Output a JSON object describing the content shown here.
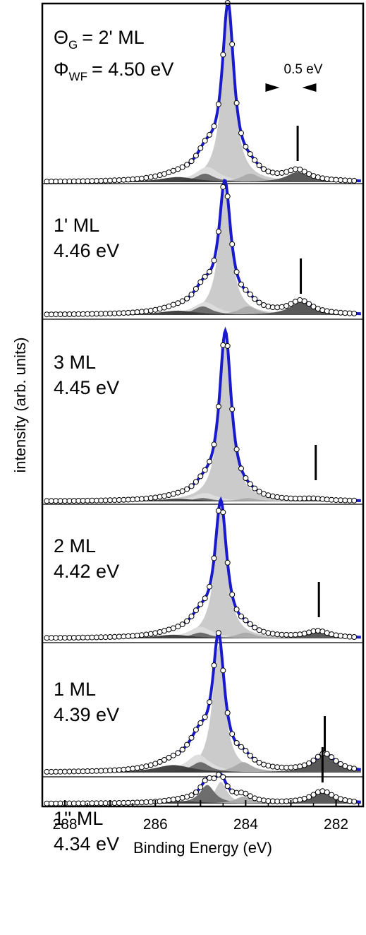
{
  "chart_data": {
    "type": "line",
    "xlabel": "Binding Energy (eV)",
    "ylabel": "intensity (arb. units)",
    "xlim": [
      288.5,
      281.4
    ],
    "x_reversed": true,
    "xticks": [
      288,
      287,
      286,
      285,
      284,
      283,
      282
    ],
    "xtick_labels": [
      "288",
      "",
      "286",
      "",
      "284",
      "",
      "282"
    ],
    "scale_bar": {
      "label": "0.5 eV",
      "width_eV": 0.5
    },
    "colors": {
      "fit": "#1a1acd",
      "main_peak": "#c8c8c8",
      "shoulder_light": "#dcdcdc",
      "component_dark": "#3a3a3a",
      "component_mid": "#666666",
      "satellite": "#505050",
      "markers": "#ffffff"
    },
    "panels": [
      {
        "coverage_prefix": "Θ",
        "coverage_sub": "G",
        "coverage_value": "= 2' ML",
        "wf_prefix": "Φ",
        "wf_sub": "WF",
        "wf_value": "= 4.50 eV",
        "peak_position": 284.39,
        "peak_height": 1.0,
        "marker_position": 282.85,
        "components": [
          {
            "name": "C1",
            "center": 284.39,
            "height": 1.0,
            "width": 0.16,
            "color": "#c8c8c8"
          },
          {
            "name": "C2",
            "center": 284.85,
            "height": 0.09,
            "width": 0.32,
            "color": "#dcdcdc"
          },
          {
            "name": "C3",
            "center": 283.9,
            "height": 0.05,
            "width": 0.25,
            "color": "#aaaaaa"
          },
          {
            "name": "C4",
            "center": 284.9,
            "height": 0.05,
            "width": 0.25,
            "color": "#666666"
          },
          {
            "name": "C5",
            "center": 285.5,
            "height": 0.03,
            "width": 0.5,
            "color": "#3a3a3a"
          },
          {
            "name": "S",
            "center": 282.85,
            "height": 0.06,
            "width": 0.3,
            "color": "#505050"
          }
        ]
      },
      {
        "label_line1": "1' ML",
        "label_line2": "4.46 eV",
        "peak_position": 284.46,
        "peak_height": 0.88,
        "marker_position": 282.78,
        "components": [
          {
            "name": "C1",
            "center": 284.46,
            "height": 0.88,
            "width": 0.16,
            "color": "#c8c8c8"
          },
          {
            "name": "C2",
            "center": 284.9,
            "height": 0.09,
            "width": 0.32,
            "color": "#dcdcdc"
          },
          {
            "name": "C3",
            "center": 283.95,
            "height": 0.06,
            "width": 0.25,
            "color": "#aaaaaa"
          },
          {
            "name": "C4",
            "center": 284.95,
            "height": 0.06,
            "width": 0.25,
            "color": "#666666"
          },
          {
            "name": "C5",
            "center": 285.5,
            "height": 0.03,
            "width": 0.5,
            "color": "#3a3a3a"
          },
          {
            "name": "S",
            "center": 282.78,
            "height": 0.09,
            "width": 0.3,
            "color": "#505050"
          }
        ]
      },
      {
        "label_line1": "3 ML",
        "label_line2": "4.45 eV",
        "peak_position": 284.45,
        "peak_height": 1.0,
        "marker_position": 282.45,
        "components": [
          {
            "name": "C1",
            "center": 284.45,
            "height": 1.0,
            "width": 0.16,
            "color": "#c8c8c8"
          },
          {
            "name": "C2",
            "center": 284.9,
            "height": 0.05,
            "width": 0.32,
            "color": "#dcdcdc"
          },
          {
            "name": "C3",
            "center": 283.95,
            "height": 0.02,
            "width": 0.25,
            "color": "#aaaaaa"
          },
          {
            "name": "C4",
            "center": 284.95,
            "height": 0.02,
            "width": 0.25,
            "color": "#666666"
          },
          {
            "name": "C5",
            "center": 285.5,
            "height": 0.015,
            "width": 0.5,
            "color": "#3a3a3a"
          },
          {
            "name": "S",
            "center": 282.5,
            "height": 0.01,
            "width": 0.3,
            "color": "#505050"
          }
        ]
      },
      {
        "label_line1": "2 ML",
        "label_line2": "4.42 eV",
        "peak_position": 284.55,
        "peak_height": 0.9,
        "marker_position": 282.38,
        "components": [
          {
            "name": "C1",
            "center": 284.55,
            "height": 0.9,
            "width": 0.16,
            "color": "#c8c8c8"
          },
          {
            "name": "C2",
            "center": 285.0,
            "height": 0.08,
            "width": 0.32,
            "color": "#dcdcdc"
          },
          {
            "name": "C3",
            "center": 284.0,
            "height": 0.04,
            "width": 0.25,
            "color": "#aaaaaa"
          },
          {
            "name": "C4",
            "center": 285.0,
            "height": 0.04,
            "width": 0.25,
            "color": "#666666"
          },
          {
            "name": "C5",
            "center": 285.6,
            "height": 0.025,
            "width": 0.5,
            "color": "#3a3a3a"
          },
          {
            "name": "S",
            "center": 282.4,
            "height": 0.045,
            "width": 0.3,
            "color": "#505050"
          }
        ]
      },
      {
        "label_line1": "1 ML",
        "label_line2": "4.39 eV",
        "peak_position": 284.6,
        "peak_height": 0.85,
        "marker_position": 282.25,
        "components": [
          {
            "name": "C1",
            "center": 284.6,
            "height": 0.85,
            "width": 0.16,
            "color": "#c8c8c8"
          },
          {
            "name": "C2",
            "center": 285.05,
            "height": 0.12,
            "width": 0.32,
            "color": "#dcdcdc"
          },
          {
            "name": "C3",
            "center": 284.05,
            "height": 0.07,
            "width": 0.25,
            "color": "#aaaaaa"
          },
          {
            "name": "C4",
            "center": 285.0,
            "height": 0.07,
            "width": 0.25,
            "color": "#666666"
          },
          {
            "name": "C5",
            "center": 285.6,
            "height": 0.05,
            "width": 0.5,
            "color": "#3a3a3a"
          },
          {
            "name": "S",
            "center": 282.25,
            "height": 0.12,
            "width": 0.3,
            "color": "#505050"
          }
        ]
      },
      {
        "label_line1": "1'' ML",
        "label_line2": "4.34 eV",
        "peak_position": 284.6,
        "peak_height": 0.88,
        "marker_position": 282.3,
        "components": [
          {
            "name": "C1",
            "center": 284.55,
            "height": 0.68,
            "width": 0.16,
            "color": "#c8c8c8"
          },
          {
            "name": "C2",
            "center": 284.85,
            "height": 0.58,
            "width": 0.2,
            "color": "#666666"
          },
          {
            "name": "C3",
            "center": 284.05,
            "height": 0.22,
            "width": 0.22,
            "color": "#aaaaaa"
          },
          {
            "name": "C5",
            "center": 285.4,
            "height": 0.08,
            "width": 0.5,
            "color": "#3a3a3a"
          },
          {
            "name": "S",
            "center": 282.3,
            "height": 0.38,
            "width": 0.3,
            "color": "#505050"
          }
        ]
      }
    ]
  }
}
